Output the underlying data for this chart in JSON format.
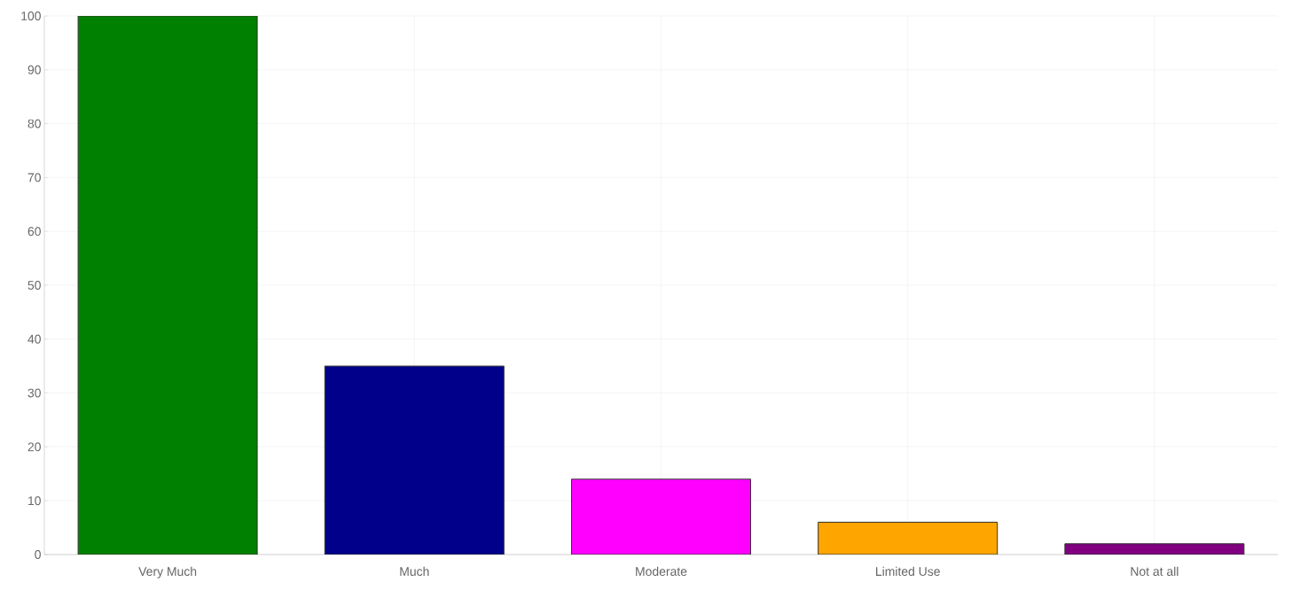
{
  "chart_data": {
    "type": "bar",
    "categories": [
      "Very Much",
      "Much",
      "Moderate",
      "Limited Use",
      "Not at all"
    ],
    "values": [
      100,
      35,
      14,
      6,
      2
    ],
    "colors": [
      "#008000",
      "#00008b",
      "#ff00ff",
      "#ffa500",
      "#800080"
    ],
    "ylim": [
      0,
      100
    ],
    "yticks": [
      0,
      10,
      20,
      30,
      40,
      50,
      60,
      70,
      80,
      90,
      100
    ],
    "grid": true
  }
}
